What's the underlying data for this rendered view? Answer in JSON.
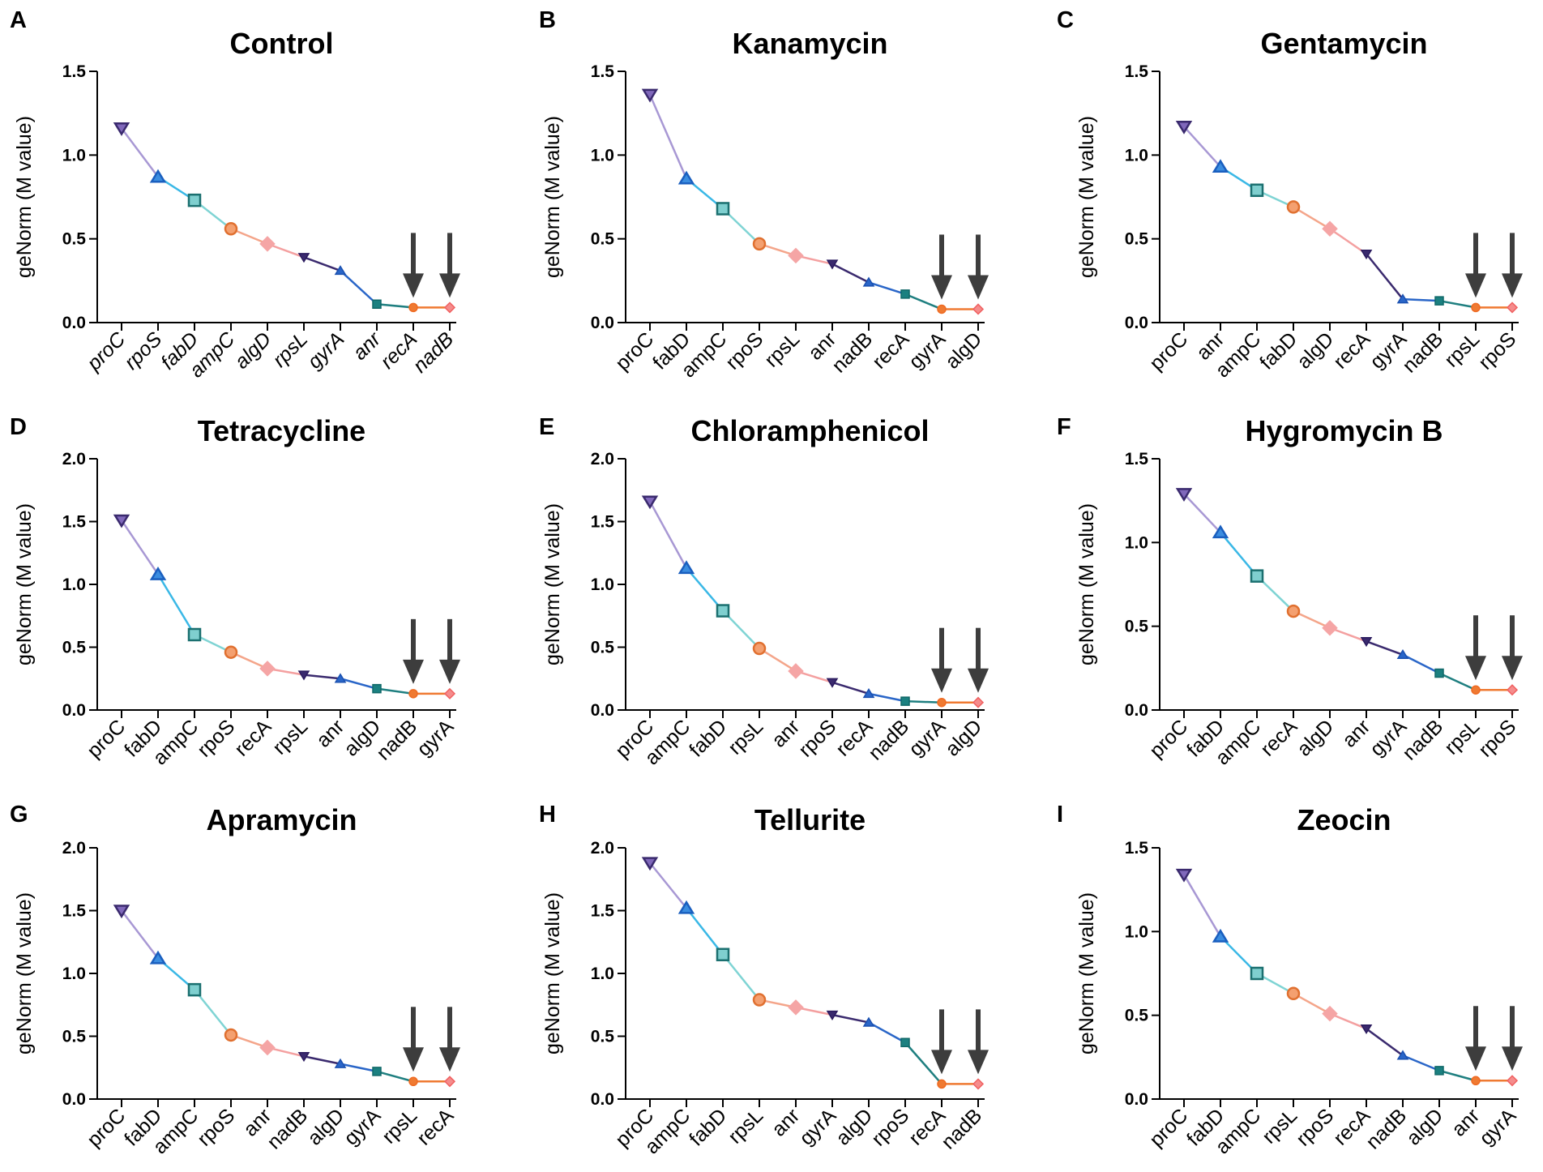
{
  "chart_data": [
    {
      "id": "A",
      "type": "line",
      "title": "Control",
      "ylabel": "geNorm (M value)",
      "ylim": [
        0,
        1.5
      ],
      "yticks": [
        "0.0",
        "0.5",
        "1.0",
        "1.5"
      ],
      "italic_labels": true,
      "categories": [
        "proC",
        "rpoS",
        "fabD",
        "ampC",
        "algD",
        "rpsL",
        "gyrA",
        "anr",
        "recA",
        "nadB"
      ],
      "values": [
        1.16,
        0.87,
        0.73,
        0.56,
        0.47,
        0.39,
        0.31,
        0.11,
        0.09,
        0.09
      ],
      "markers": [
        "tri-down",
        "tri-up",
        "square",
        "circle",
        "diamond",
        "tri-down-small",
        "tri-up-small",
        "square-small",
        "circle-small",
        "diamond-small"
      ],
      "arrows": [
        "recA",
        "nadB"
      ]
    },
    {
      "id": "B",
      "type": "line",
      "title": "Kanamycin",
      "ylabel": "geNorm (M value)",
      "ylim": [
        0,
        1.5
      ],
      "yticks": [
        "0.0",
        "0.5",
        "1.0",
        "1.5"
      ],
      "italic_labels": false,
      "categories": [
        "proC",
        "fabD",
        "ampC",
        "rpoS",
        "rpsL",
        "anr",
        "nadB",
        "recA",
        "gyrA",
        "algD"
      ],
      "values": [
        1.36,
        0.86,
        0.68,
        0.47,
        0.4,
        0.35,
        0.24,
        0.17,
        0.08,
        0.08
      ],
      "markers": [
        "tri-down",
        "tri-up",
        "square",
        "circle",
        "diamond",
        "tri-down-small",
        "tri-up-small",
        "square-small",
        "circle-small",
        "diamond-small"
      ],
      "arrows": [
        "gyrA",
        "algD"
      ]
    },
    {
      "id": "C",
      "type": "line",
      "title": "Gentamycin",
      "ylabel": "geNorm (M value)",
      "ylim": [
        0,
        1.5
      ],
      "yticks": [
        "0.0",
        "0.5",
        "1.0",
        "1.5"
      ],
      "italic_labels": false,
      "categories": [
        "proC",
        "anr",
        "ampC",
        "fabD",
        "algD",
        "recA",
        "gyrA",
        "nadB",
        "rpsL",
        "rpoS"
      ],
      "values": [
        1.17,
        0.93,
        0.79,
        0.69,
        0.56,
        0.41,
        0.14,
        0.13,
        0.09,
        0.09
      ],
      "markers": [
        "tri-down",
        "tri-up",
        "square",
        "circle",
        "diamond",
        "tri-down-small",
        "tri-up-small",
        "square-small",
        "circle-small",
        "diamond-small"
      ],
      "arrows": [
        "rpsL",
        "rpoS"
      ]
    },
    {
      "id": "D",
      "type": "line",
      "title": "Tetracycline",
      "ylabel": "geNorm (M value)",
      "ylim": [
        0,
        2.0
      ],
      "yticks": [
        "0.0",
        "0.5",
        "1.0",
        "1.5",
        "2.0"
      ],
      "italic_labels": false,
      "categories": [
        "proC",
        "fabD",
        "ampC",
        "rpoS",
        "recA",
        "rpsL",
        "anr",
        "algD",
        "nadB",
        "gyrA"
      ],
      "values": [
        1.51,
        1.08,
        0.6,
        0.46,
        0.33,
        0.28,
        0.25,
        0.17,
        0.13,
        0.13
      ],
      "markers": [
        "tri-down",
        "tri-up",
        "square",
        "circle",
        "diamond",
        "tri-down-small",
        "tri-up-small",
        "square-small",
        "circle-small",
        "diamond-small"
      ],
      "arrows": [
        "nadB",
        "gyrA"
      ]
    },
    {
      "id": "E",
      "type": "line",
      "title": "Chloramphenicol",
      "ylabel": "geNorm (M value)",
      "ylim": [
        0,
        2.0
      ],
      "yticks": [
        "0.0",
        "0.5",
        "1.0",
        "1.5",
        "2.0"
      ],
      "italic_labels": false,
      "categories": [
        "proC",
        "ampC",
        "fabD",
        "rpsL",
        "anr",
        "rpoS",
        "recA",
        "nadB",
        "gyrA",
        "algD"
      ],
      "values": [
        1.66,
        1.13,
        0.79,
        0.49,
        0.31,
        0.22,
        0.13,
        0.07,
        0.06,
        0.06
      ],
      "markers": [
        "tri-down",
        "tri-up",
        "square",
        "circle",
        "diamond",
        "tri-down-small",
        "tri-up-small",
        "square-small",
        "circle-small",
        "diamond-small"
      ],
      "arrows": [
        "gyrA",
        "algD"
      ]
    },
    {
      "id": "F",
      "type": "line",
      "title": "Hygromycin B",
      "ylabel": "geNorm (M value)",
      "ylim": [
        0,
        1.5
      ],
      "yticks": [
        "0.0",
        "0.5",
        "1.0",
        "1.5"
      ],
      "italic_labels": false,
      "categories": [
        "proC",
        "fabD",
        "ampC",
        "recA",
        "algD",
        "anr",
        "gyrA",
        "nadB",
        "rpsL",
        "rpoS"
      ],
      "values": [
        1.29,
        1.06,
        0.8,
        0.59,
        0.49,
        0.41,
        0.33,
        0.22,
        0.12,
        0.12
      ],
      "markers": [
        "tri-down",
        "tri-up",
        "square",
        "circle",
        "diamond",
        "tri-down-small",
        "tri-up-small",
        "square-small",
        "circle-small",
        "diamond-small"
      ],
      "arrows": [
        "rpsL",
        "rpoS"
      ]
    },
    {
      "id": "G",
      "type": "line",
      "title": "Apramycin",
      "ylabel": "geNorm (M value)",
      "ylim": [
        0,
        2.0
      ],
      "yticks": [
        "0.0",
        "0.5",
        "1.0",
        "1.5",
        "2.0"
      ],
      "italic_labels": false,
      "categories": [
        "proC",
        "fabD",
        "ampC",
        "rpoS",
        "anr",
        "nadB",
        "algD",
        "gyrA",
        "rpsL",
        "recA"
      ],
      "values": [
        1.5,
        1.12,
        0.87,
        0.51,
        0.41,
        0.34,
        0.28,
        0.22,
        0.14,
        0.14
      ],
      "markers": [
        "tri-down",
        "tri-up",
        "square",
        "circle",
        "diamond",
        "tri-down-small",
        "tri-up-small",
        "square-small",
        "circle-small",
        "diamond-small"
      ],
      "arrows": [
        "rpsL",
        "recA"
      ]
    },
    {
      "id": "H",
      "type": "line",
      "title": "Tellurite",
      "ylabel": "geNorm (M value)",
      "ylim": [
        0,
        2.0
      ],
      "yticks": [
        "0.0",
        "0.5",
        "1.0",
        "1.5",
        "2.0"
      ],
      "italic_labels": false,
      "categories": [
        "proC",
        "ampC",
        "fabD",
        "rpsL",
        "anr",
        "gyrA",
        "algD",
        "rpoS",
        "recA",
        "nadB"
      ],
      "values": [
        1.88,
        1.52,
        1.15,
        0.79,
        0.73,
        0.67,
        0.61,
        0.45,
        0.12,
        0.12
      ],
      "markers": [
        "tri-down",
        "tri-up",
        "square",
        "circle",
        "diamond",
        "tri-down-small",
        "tri-up-small",
        "square-small",
        "circle-small",
        "diamond-small"
      ],
      "arrows": [
        "recA",
        "nadB"
      ]
    },
    {
      "id": "I",
      "type": "line",
      "title": "Zeocin",
      "ylabel": "geNorm (M value)",
      "ylim": [
        0,
        1.5
      ],
      "yticks": [
        "0.0",
        "0.5",
        "1.0",
        "1.5"
      ],
      "italic_labels": false,
      "categories": [
        "proC",
        "fabD",
        "ampC",
        "rpsL",
        "rpoS",
        "recA",
        "nadB",
        "algD",
        "anr",
        "gyrA"
      ],
      "values": [
        1.34,
        0.97,
        0.75,
        0.63,
        0.51,
        0.42,
        0.26,
        0.17,
        0.11,
        0.11
      ],
      "markers": [
        "tri-down",
        "tri-up",
        "square",
        "circle",
        "diamond",
        "tri-down-small",
        "tri-up-small",
        "square-small",
        "circle-small",
        "diamond-small"
      ],
      "arrows": [
        "anr",
        "gyrA"
      ]
    }
  ],
  "style": {
    "segment_colors": [
      "#a898d4",
      "#3ab8e6",
      "#7fd4d4",
      "#f4a58a",
      "#f4a0a0",
      "#3a2a6e",
      "#2a66c8",
      "#1f7f80",
      "#ef7a32"
    ],
    "marker_fill": [
      "#8068bb",
      "#3b8de0",
      "#7fcfcf",
      "#f4a070",
      "#f5a5a5",
      "#3a2a6e",
      "#2a66c8",
      "#1b8080",
      "#ef7a32",
      "#f58c8c"
    ],
    "marker_stroke": [
      "#3a2a6e",
      "#1a5fbf",
      "#1b7070",
      "#e07030",
      "#f5a5a5",
      "#2a1a5e",
      "#1a50b0",
      "#106868",
      "#ef6a22",
      "#f06060"
    ],
    "arrow_color": "#3d3d3d",
    "axis_color": "#000000"
  }
}
